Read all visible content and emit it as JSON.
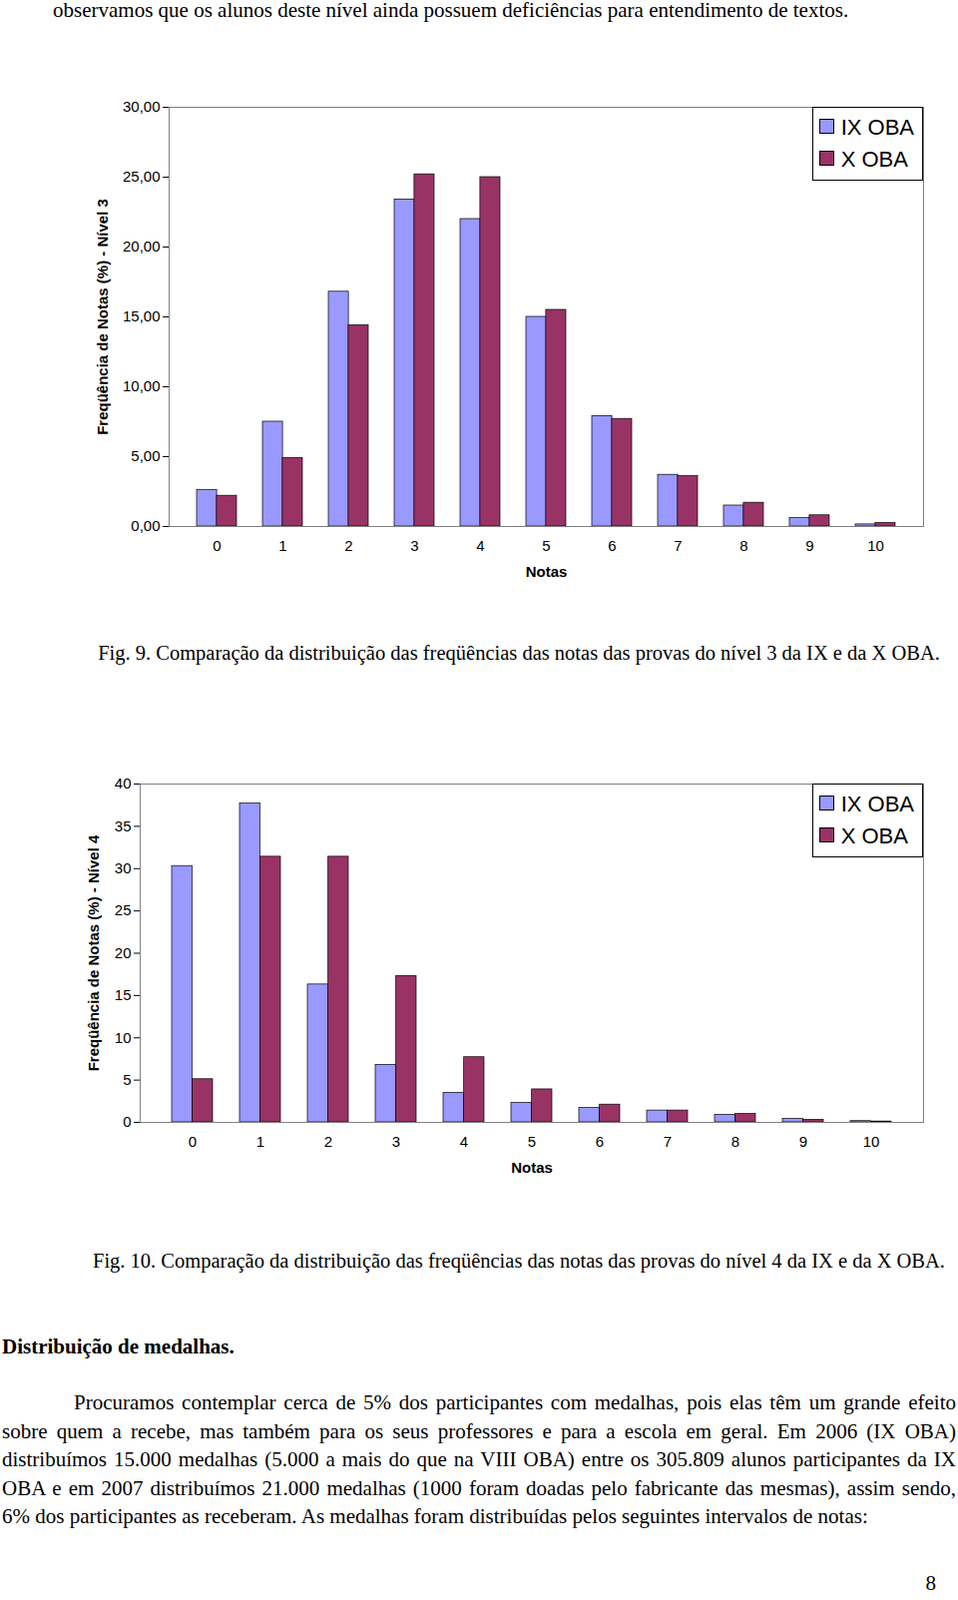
{
  "paragraph_top": "observamos que os alunos deste nível ainda possuem deficiências para entendimento de textos.",
  "chart_data": [
    {
      "type": "bar",
      "x_label": "Notas",
      "y_label": "Freqüência de Notas (%) - Nível 3",
      "categories": [
        "0",
        "1",
        "2",
        "3",
        "4",
        "5",
        "6",
        "7",
        "8",
        "9",
        "10"
      ],
      "series": [
        {
          "name": "IX OBA",
          "color": "#9999ff",
          "values": [
            2.6,
            7.5,
            16.8,
            23.4,
            22.0,
            15.0,
            7.9,
            3.7,
            1.5,
            0.6,
            0.15
          ]
        },
        {
          "name": "X OBA",
          "color": "#993366",
          "values": [
            2.2,
            4.9,
            14.4,
            25.2,
            25.0,
            15.5,
            7.7,
            3.6,
            1.7,
            0.8,
            0.25
          ]
        }
      ],
      "ylim": [
        0,
        30
      ],
      "yticks": [
        {
          "value": 0,
          "label": "0,00"
        },
        {
          "value": 5,
          "label": "5,00"
        },
        {
          "value": 10,
          "label": "10,00"
        },
        {
          "value": 15,
          "label": "15,00"
        },
        {
          "value": 20,
          "label": "20,00"
        },
        {
          "value": 25,
          "label": "25,00"
        },
        {
          "value": 30,
          "label": "30,00"
        }
      ],
      "grid": false,
      "legend": "top-right"
    },
    {
      "type": "bar",
      "x_label": "Notas",
      "y_label": "Freqüência de Notas (%) - Nível 4",
      "categories": [
        "0",
        "1",
        "2",
        "3",
        "4",
        "5",
        "6",
        "7",
        "8",
        "9",
        "10"
      ],
      "series": [
        {
          "name": "IX OBA",
          "color": "#9999ff",
          "values": [
            30.3,
            37.7,
            16.3,
            6.8,
            3.5,
            2.3,
            1.7,
            1.4,
            0.9,
            0.4,
            0.15
          ]
        },
        {
          "name": "X OBA",
          "color": "#993366",
          "values": [
            5.1,
            31.4,
            31.4,
            17.3,
            7.7,
            3.9,
            2.1,
            1.4,
            1.0,
            0.3,
            0.1
          ]
        }
      ],
      "ylim": [
        0,
        40
      ],
      "yticks": [
        0,
        5,
        10,
        15,
        20,
        25,
        30,
        35,
        40
      ],
      "grid": false,
      "legend": "top-right"
    }
  ],
  "captions": [
    "Fig. 9. Comparação da distribuição das freqüências das notas das provas do nível 3 da IX e da X OBA.",
    "Fig. 10. Comparação da distribuição das freqüências das notas das provas do nível 4 da IX e da X OBA."
  ],
  "section_heading": "Distribuição de medalhas.",
  "paragraph": "Procuramos contemplar cerca de 5% dos participantes com medalhas, pois elas têm um grande efeito sobre quem a recebe, mas também para os seus professores e para a escola em geral. Em 2006 (IX OBA) distribuímos 15.000 medalhas (5.000 a mais do que na VIII OBA) entre os 305.809 alunos participantes da IX OBA e em 2007 distribuímos 21.000 medalhas (1000 foram doadas pelo fabricante das mesmas), assim sendo, 6% dos participantes as receberam. As medalhas foram distribuídas pelos seguintes intervalos de notas:",
  "page_number": "8"
}
